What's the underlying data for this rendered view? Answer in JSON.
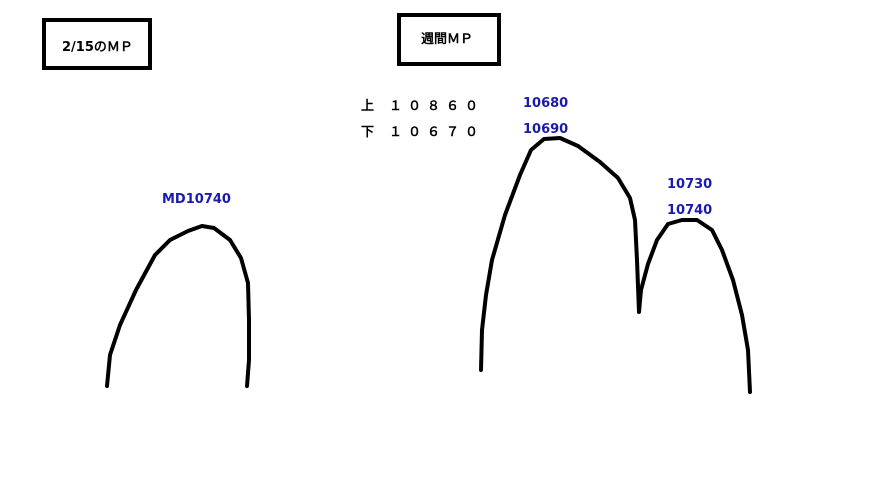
{
  "daily_box": {
    "label": "2/15のＭＰ"
  },
  "weekly_box": {
    "label": "週間ＭＰ"
  },
  "weekly_levels": [
    {
      "label": "上",
      "value": "１０８６０"
    },
    {
      "label": "下",
      "value": "１０６７０"
    }
  ],
  "daily_peak_label": "MD10740",
  "weekly_peak1_labels": [
    "10680",
    "10690"
  ],
  "weekly_peak2_labels": [
    "10730",
    "10740"
  ],
  "colors": {
    "annotation": "#1a1ab0",
    "stroke": "#000000"
  }
}
